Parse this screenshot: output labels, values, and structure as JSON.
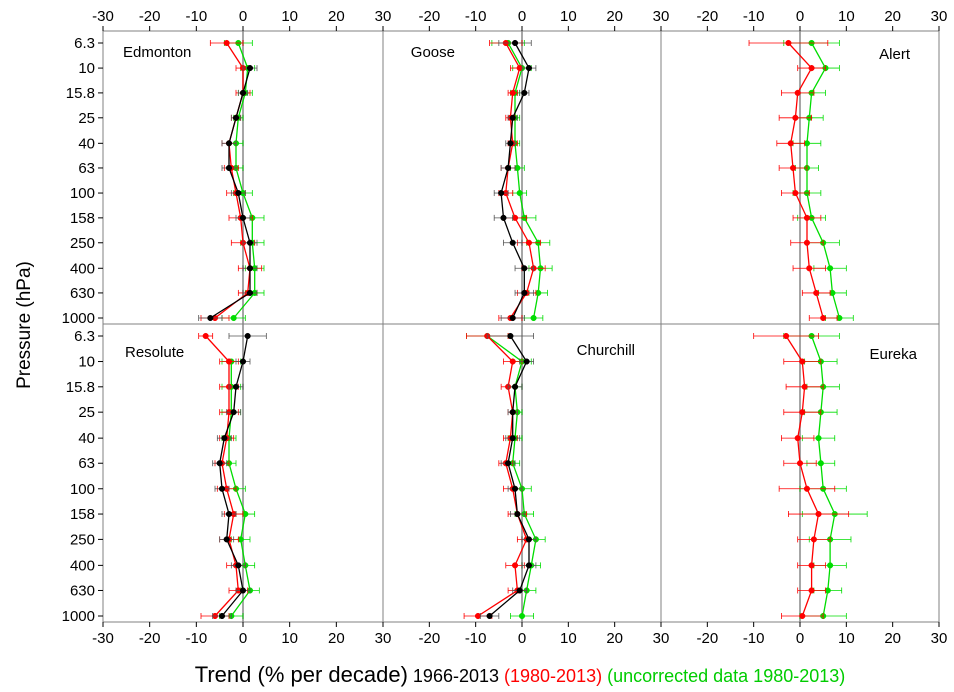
{
  "figure": {
    "ylabel": "Pressure (hPa)",
    "xlabel_parts": [
      {
        "text": "Trend (% per decade)",
        "color": "#000000",
        "size": "large"
      },
      {
        "text": " 1966-2013 ",
        "color": "#000000",
        "size": "small"
      },
      {
        "text": "(1980-2013)",
        "color": "#ff0000",
        "size": "small"
      },
      {
        "text": " (uncorrected data 1980-2013)",
        "color": "#00cc00",
        "size": "small"
      }
    ]
  },
  "chart_data": {
    "type": "line",
    "xlim": [
      -30,
      30
    ],
    "x_ticks": [
      -30,
      -20,
      -10,
      0,
      10,
      20,
      30
    ],
    "y_axis_log": true,
    "y_ticks": [
      "6.3",
      "10",
      "15.8",
      "25",
      "40",
      "63",
      "100",
      "158",
      "250",
      "400",
      "630",
      "1000"
    ],
    "grid": false,
    "reference_line_x": 0,
    "series_colors": {
      "1966-2013": "#000000",
      "1980-2013": "#ff0000",
      "uncorrected data 1980-2013": "#00dd00"
    },
    "panels": [
      {
        "title": "Edmonton",
        "series": [
          {
            "name": "1966-2013",
            "color": "#000000",
            "levels": [
              "10",
              "15.8",
              "25",
              "40",
              "63",
              "100",
              "158",
              "250",
              "400",
              "630",
              "1000"
            ],
            "values": [
              1.5,
              0,
              -1.5,
              -3,
              -3,
              -1,
              0,
              1.5,
              1.5,
              1.5,
              -7
            ],
            "errors": [
              1.5,
              1,
              1,
              1.5,
              1.5,
              1.5,
              1.5,
              1.5,
              1.5,
              1.5,
              2.5
            ]
          },
          {
            "name": "1980-2013",
            "color": "#ff0000",
            "levels": [
              "6.3",
              "10",
              "15.8",
              "25",
              "40",
              "63",
              "100",
              "158",
              "250",
              "400",
              "630",
              "1000"
            ],
            "values": [
              -3.5,
              0,
              0,
              -1.5,
              -3,
              -2.5,
              -1.5,
              -0.5,
              0,
              1.5,
              1,
              -6
            ],
            "errors": [
              3.5,
              1.5,
              1.5,
              1,
              1.5,
              1.5,
              2,
              2.5,
              2.5,
              2.5,
              2,
              3
            ]
          },
          {
            "name": "uncorrected data 1980-2013",
            "color": "#00dd00",
            "levels": [
              "6.3",
              "10",
              "15.8",
              "25",
              "40",
              "63",
              "100",
              "158",
              "250",
              "400",
              "630",
              "1000"
            ],
            "values": [
              -1,
              1,
              0.5,
              -1,
              -1.5,
              -1.5,
              0,
              2,
              2,
              2.5,
              2.5,
              -2
            ],
            "errors": [
              3,
              1.5,
              1.5,
              1,
              1.5,
              1.5,
              2,
              2.5,
              2.5,
              2,
              2,
              2.5
            ]
          }
        ]
      },
      {
        "title": "Goose",
        "series": [
          {
            "name": "1966-2013",
            "color": "#000000",
            "levels": [
              "6.3",
              "10",
              "15.8",
              "25",
              "40",
              "63",
              "100",
              "158",
              "250",
              "400",
              "630",
              "1000"
            ],
            "values": [
              -1.5,
              1.5,
              0.5,
              -2,
              -2.5,
              -3,
              -4.5,
              -4,
              -2,
              0.5,
              0.5,
              -2
            ],
            "errors": [
              3.5,
              1.5,
              1,
              1,
              1,
              1.5,
              1.5,
              2,
              2,
              2,
              2,
              2.5
            ]
          },
          {
            "name": "1980-2013",
            "color": "#ff0000",
            "levels": [
              "6.3",
              "10",
              "15.8",
              "25",
              "40",
              "63",
              "100",
              "158",
              "250",
              "400",
              "630",
              "1000"
            ],
            "values": [
              -3.5,
              -0.5,
              -2,
              -2.5,
              -2,
              -3,
              -3.5,
              -1.5,
              1.5,
              2.5,
              1,
              -2.5
            ],
            "errors": [
              3.5,
              2,
              1,
              1,
              1,
              1.5,
              1.5,
              2.5,
              2.5,
              2.5,
              2,
              2.5
            ]
          },
          {
            "name": "uncorrected data 1980-2013",
            "color": "#00dd00",
            "levels": [
              "6.3",
              "10",
              "15.8",
              "25",
              "40",
              "63",
              "100",
              "158",
              "250",
              "400",
              "630",
              "1000"
            ],
            "values": [
              -3,
              0,
              -1.5,
              -1.5,
              -1.5,
              -1,
              -0.5,
              0.5,
              3.5,
              4,
              3.5,
              2.5
            ],
            "errors": [
              3.5,
              2,
              1,
              1,
              1,
              1.5,
              1.5,
              2.5,
              2.5,
              2.5,
              2,
              2
            ]
          }
        ]
      },
      {
        "title": "Alert",
        "series": [
          {
            "name": "1980-2013",
            "color": "#ff0000",
            "levels": [
              "6.3",
              "10",
              "15.8",
              "25",
              "40",
              "63",
              "100",
              "158",
              "250",
              "400",
              "630",
              "1000"
            ],
            "values": [
              -2.5,
              2.5,
              -0.5,
              -1,
              -2,
              -1.5,
              -1,
              1.5,
              1.5,
              2,
              3.5,
              5
            ],
            "errors": [
              8.5,
              3,
              3.5,
              3.5,
              3,
              3,
              3,
              3,
              3.5,
              3.5,
              3,
              3
            ]
          },
          {
            "name": "uncorrected data 1980-2013",
            "color": "#00dd00",
            "levels": [
              "6.3",
              "10",
              "15.8",
              "25",
              "40",
              "63",
              "100",
              "158",
              "250",
              "400",
              "630",
              "1000"
            ],
            "values": [
              2.5,
              5.5,
              2.5,
              2,
              1.5,
              1.5,
              1.5,
              2.5,
              5,
              6.5,
              7,
              8.5
            ],
            "errors": [
              6,
              3,
              3,
              3,
              3,
              2.5,
              3,
              3,
              3.5,
              3.5,
              3,
              3
            ]
          }
        ]
      },
      {
        "title": "Resolute",
        "series": [
          {
            "name": "1966-2013",
            "color": "#000000",
            "levels": [
              "6.3",
              "10",
              "15.8",
              "25",
              "40",
              "63",
              "100",
              "158",
              "250",
              "400",
              "630",
              "1000"
            ],
            "values": [
              1,
              0,
              -1.5,
              -2,
              -4,
              -5,
              -4.5,
              -3,
              -3.5,
              -1,
              0,
              -4.5
            ],
            "errors": [
              4,
              1.5,
              1.5,
              1.5,
              1.5,
              1.5,
              1.5,
              1.5,
              1.5,
              1.5,
              1.5,
              2
            ]
          },
          {
            "name": "1980-2013",
            "color": "#ff0000",
            "levels": [
              "6.3",
              "10",
              "15.8",
              "25",
              "40",
              "63",
              "100",
              "158",
              "250",
              "400",
              "630",
              "1000"
            ],
            "values": [
              -8,
              -3,
              -3,
              -3,
              -3.5,
              -4.5,
              -3.5,
              -2,
              -3,
              -1.5,
              -1,
              -6
            ],
            "errors": [
              1.5,
              2,
              2,
              2,
              1.5,
              1.5,
              2,
              2,
              2,
              2,
              2,
              3
            ]
          },
          {
            "name": "uncorrected data 1980-2013",
            "color": "#00dd00",
            "levels": [
              "10",
              "15.8",
              "25",
              "40",
              "63",
              "100",
              "158",
              "250",
              "400",
              "630",
              "1000"
            ],
            "values": [
              -2.5,
              -2.5,
              -2.5,
              -3,
              -3,
              -1.5,
              0.5,
              -0.5,
              0.5,
              1.5,
              -2.5
            ],
            "errors": [
              2,
              2,
              2,
              1.5,
              1.5,
              2,
              2,
              2,
              2,
              2,
              2.5
            ]
          }
        ]
      },
      {
        "title": "Churchill",
        "series": [
          {
            "name": "1966-2013",
            "color": "#000000",
            "levels": [
              "6.3",
              "10",
              "15.8",
              "25",
              "40",
              "63",
              "100",
              "158",
              "250",
              "400",
              "630",
              "1000"
            ],
            "values": [
              -2.5,
              1,
              -1.5,
              -2,
              -2,
              -3,
              -1.5,
              -1,
              1.5,
              1.5,
              -0.5,
              -7
            ],
            "errors": [
              5,
              1.5,
              1.5,
              1,
              1.5,
              1.5,
              1.5,
              1.5,
              1.5,
              1.5,
              1.5,
              2
            ]
          },
          {
            "name": "1980-2013",
            "color": "#ff0000",
            "levels": [
              "6.3",
              "10",
              "15.8",
              "25",
              "40",
              "63",
              "100",
              "158",
              "250",
              "400",
              "630",
              "1000"
            ],
            "values": [
              -7.5,
              -2,
              -3,
              -2,
              -2.5,
              -3.5,
              -2,
              -1,
              1,
              -1.5,
              -1,
              -9.5
            ],
            "errors": [
              4.5,
              2,
              1.5,
              1,
              1.5,
              1.5,
              2,
              2,
              2,
              2,
              2,
              3
            ]
          },
          {
            "name": "uncorrected data 1980-2013",
            "color": "#00dd00",
            "levels": [
              "6.3",
              "10",
              "15.8",
              "25",
              "40",
              "63",
              "100",
              "158",
              "250",
              "400",
              "630",
              "1000"
            ],
            "values": [
              -7.5,
              0,
              -1.5,
              -1,
              -1.5,
              -2,
              0,
              0.5,
              3,
              2,
              1,
              0
            ],
            "errors": [
              4.5,
              2,
              1.5,
              1,
              1.5,
              1.5,
              2,
              2,
              2,
              2,
              2,
              2.5
            ]
          }
        ]
      },
      {
        "title": "Eureka",
        "series": [
          {
            "name": "1980-2013",
            "color": "#ff0000",
            "levels": [
              "6.3",
              "10",
              "15.8",
              "25",
              "40",
              "63",
              "100",
              "158",
              "250",
              "400",
              "630",
              "1000"
            ],
            "values": [
              -3,
              0.5,
              1,
              0.5,
              -0.5,
              0,
              1.5,
              4,
              3,
              2.5,
              2.5,
              0.5
            ],
            "errors": [
              7,
              4,
              4,
              4,
              3.5,
              3.5,
              6,
              6.5,
              3.5,
              3,
              3,
              4.5
            ]
          },
          {
            "name": "uncorrected data 1980-2013",
            "color": "#00dd00",
            "levels": [
              "6.3",
              "10",
              "15.8",
              "25",
              "40",
              "63",
              "100",
              "158",
              "250",
              "400",
              "630",
              "1000"
            ],
            "values": [
              2.5,
              4.5,
              5,
              4.5,
              4,
              4.5,
              5,
              7.5,
              6.5,
              6.5,
              6,
              5
            ],
            "errors": [
              6,
              3.5,
              3.5,
              3.5,
              3.5,
              3,
              5,
              7,
              4.5,
              3.5,
              3,
              5
            ]
          }
        ]
      }
    ]
  }
}
